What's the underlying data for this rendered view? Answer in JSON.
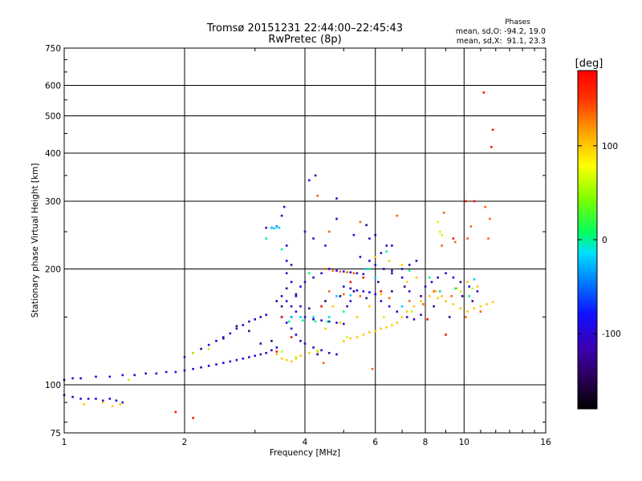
{
  "chart_data": {
    "type": "scatter",
    "title": "Tromsø 20151231 22:44:00–22:45:43",
    "subtitle": "RwPretec (8p)",
    "xlabel": "Frequency [MHz]",
    "ylabel": "Stationary phase Virtual Height [km]",
    "x_scale": "log",
    "y_scale": "log",
    "xlim": [
      1,
      16
    ],
    "ylim": [
      75,
      750
    ],
    "x_ticks": [
      1,
      2,
      4,
      6,
      8,
      10,
      16
    ],
    "y_ticks": [
      75,
      100,
      200,
      300,
      400,
      500,
      600,
      750
    ],
    "grid": true,
    "phase_stats": {
      "heading": "Phases",
      "line_o": "mean, sd,O: -94.2, 19.0",
      "line_x": "mean, sd,X:  91.1, 23.3"
    },
    "colorbar": {
      "label": "[deg]",
      "range": [
        -180,
        180
      ],
      "ticks": [
        100,
        0,
        -100
      ],
      "colors": [
        "#000000",
        "#2a0055",
        "#3a00b0",
        "#1010ff",
        "#0080ff",
        "#00e0ff",
        "#00ff60",
        "#7dff00",
        "#ffff00",
        "#ffa000",
        "#ff3000",
        "#ff0000"
      ]
    },
    "series": [
      {
        "color_deg": -100,
        "points": [
          [
            1.0,
            103
          ],
          [
            1.05,
            104
          ],
          [
            1.1,
            104
          ],
          [
            1.2,
            105
          ],
          [
            1.3,
            105
          ],
          [
            1.4,
            106
          ],
          [
            1.5,
            106
          ],
          [
            1.6,
            107
          ],
          [
            1.7,
            107
          ],
          [
            1.8,
            108
          ],
          [
            1.9,
            108
          ],
          [
            2.0,
            109
          ],
          [
            2.1,
            110
          ],
          [
            2.2,
            111
          ],
          [
            2.3,
            112
          ],
          [
            2.4,
            113
          ],
          [
            2.5,
            114
          ],
          [
            2.6,
            115
          ],
          [
            2.7,
            116
          ],
          [
            2.8,
            117
          ],
          [
            2.9,
            118
          ],
          [
            3.0,
            119
          ],
          [
            3.1,
            120
          ],
          [
            3.2,
            121
          ],
          [
            3.3,
            123
          ],
          [
            3.4,
            125
          ],
          [
            1.0,
            94
          ],
          [
            1.05,
            93
          ],
          [
            1.1,
            92
          ],
          [
            1.15,
            92
          ],
          [
            1.2,
            92
          ],
          [
            1.25,
            91
          ],
          [
            1.3,
            92
          ],
          [
            1.35,
            91
          ],
          [
            1.4,
            90
          ],
          [
            2.0,
            118
          ],
          [
            2.1,
            121
          ],
          [
            2.2,
            124
          ],
          [
            2.3,
            127
          ],
          [
            2.4,
            130
          ],
          [
            2.5,
            133
          ],
          [
            2.6,
            136
          ],
          [
            2.7,
            140
          ],
          [
            2.8,
            143
          ],
          [
            2.9,
            146
          ],
          [
            3.0,
            148
          ],
          [
            3.1,
            150
          ],
          [
            3.2,
            152
          ],
          [
            3.2,
            256
          ],
          [
            3.3,
            256
          ],
          [
            3.4,
            258
          ],
          [
            3.5,
            275
          ],
          [
            3.55,
            290
          ],
          [
            3.6,
            230
          ],
          [
            3.6,
            210
          ],
          [
            3.6,
            195
          ],
          [
            3.7,
            205
          ],
          [
            3.7,
            185
          ],
          [
            3.5,
            170
          ],
          [
            3.6,
            165
          ],
          [
            3.7,
            160
          ],
          [
            3.8,
            170
          ],
          [
            3.9,
            180
          ],
          [
            3.5,
            150
          ],
          [
            3.6,
            145
          ],
          [
            3.7,
            140
          ],
          [
            3.8,
            135
          ],
          [
            3.9,
            130
          ],
          [
            4.0,
            128
          ],
          [
            4.2,
            125
          ],
          [
            4.4,
            123
          ],
          [
            4.6,
            121
          ],
          [
            4.8,
            120
          ],
          [
            4.0,
            150
          ],
          [
            4.2,
            148
          ],
          [
            4.4,
            147
          ],
          [
            4.6,
            146
          ],
          [
            4.8,
            145
          ],
          [
            5.0,
            144
          ],
          [
            3.9,
            160
          ],
          [
            3.8,
            155
          ],
          [
            3.7,
            150
          ],
          [
            4.0,
            185
          ],
          [
            4.2,
            190
          ],
          [
            4.4,
            195
          ],
          [
            4.6,
            200
          ],
          [
            4.8,
            198
          ],
          [
            5.0,
            197
          ],
          [
            5.2,
            196
          ],
          [
            5.4,
            195
          ],
          [
            5.6,
            194
          ],
          [
            5.0,
            180
          ],
          [
            5.2,
            178
          ],
          [
            5.4,
            176
          ],
          [
            5.6,
            175
          ],
          [
            5.8,
            174
          ],
          [
            6.0,
            172
          ],
          [
            5.5,
            215
          ],
          [
            5.8,
            210
          ],
          [
            6.0,
            205
          ],
          [
            6.3,
            200
          ],
          [
            6.6,
            198
          ],
          [
            7.0,
            200
          ],
          [
            7.3,
            205
          ],
          [
            7.6,
            210
          ],
          [
            4.0,
            250
          ],
          [
            4.2,
            240
          ],
          [
            4.5,
            230
          ],
          [
            4.8,
            270
          ],
          [
            5.3,
            245
          ],
          [
            5.8,
            240
          ],
          [
            6.2,
            220
          ],
          [
            6.6,
            230
          ],
          [
            6.2,
            165
          ],
          [
            6.5,
            160
          ],
          [
            6.8,
            155
          ],
          [
            7.2,
            150
          ],
          [
            7.5,
            148
          ],
          [
            7.8,
            152
          ],
          [
            8.0,
            180
          ],
          [
            8.3,
            185
          ],
          [
            8.6,
            190
          ],
          [
            9.0,
            195
          ],
          [
            9.4,
            190
          ],
          [
            9.8,
            185
          ],
          [
            10.3,
            180
          ],
          [
            10.8,
            175
          ],
          [
            4.1,
            340
          ],
          [
            4.25,
            350
          ],
          [
            4.8,
            305
          ],
          [
            6.4,
            230
          ],
          [
            7.0,
            190
          ],
          [
            7.3,
            175
          ],
          [
            5.1,
            160
          ],
          [
            5.2,
            165
          ]
        ]
      },
      {
        "color_deg": -130,
        "points": [
          [
            2.5,
            132
          ],
          [
            2.7,
            142
          ],
          [
            2.9,
            138
          ],
          [
            3.1,
            128
          ],
          [
            3.3,
            130
          ],
          [
            3.4,
            165
          ],
          [
            3.5,
            160
          ],
          [
            3.6,
            178
          ],
          [
            3.8,
            172
          ],
          [
            4.1,
            158
          ],
          [
            4.5,
            165
          ],
          [
            4.9,
            170
          ],
          [
            5.3,
            175
          ],
          [
            5.7,
            168
          ],
          [
            6.1,
            185
          ],
          [
            6.6,
            195
          ],
          [
            7.1,
            180
          ],
          [
            7.8,
            170
          ],
          [
            8.4,
            160
          ],
          [
            9.2,
            150
          ],
          [
            9.9,
            170
          ],
          [
            10.5,
            165
          ],
          [
            5.7,
            260
          ],
          [
            6.0,
            245
          ],
          [
            6.6,
            175
          ],
          [
            4.3,
            120
          ]
        ]
      },
      {
        "color_deg": -20,
        "points": [
          [
            3.3,
            256
          ],
          [
            3.35,
            255
          ],
          [
            3.4,
            257
          ],
          [
            3.45,
            256
          ],
          [
            3.7,
            150
          ],
          [
            3.9,
            150
          ],
          [
            4.2,
            150
          ],
          [
            4.6,
            150
          ],
          [
            4.8,
            170
          ],
          [
            5.2,
            171
          ],
          [
            5.7,
            200
          ],
          [
            6.0,
            190
          ],
          [
            7.0,
            160
          ],
          [
            8.7,
            175
          ],
          [
            10.6,
            188
          ]
        ]
      },
      {
        "color_deg": 100,
        "points": [
          [
            1.12,
            89
          ],
          [
            1.25,
            90
          ],
          [
            1.32,
            88
          ],
          [
            1.38,
            89
          ],
          [
            3.4,
            120
          ],
          [
            3.5,
            117
          ],
          [
            3.6,
            116
          ],
          [
            3.7,
            115
          ],
          [
            3.8,
            117
          ],
          [
            3.9,
            119
          ],
          [
            4.1,
            121
          ],
          [
            4.3,
            122
          ],
          [
            5.0,
            130
          ],
          [
            5.2,
            132
          ],
          [
            5.4,
            133
          ],
          [
            5.6,
            135
          ],
          [
            5.8,
            137
          ],
          [
            6.0,
            138
          ],
          [
            6.2,
            140
          ],
          [
            6.4,
            141
          ],
          [
            6.6,
            143
          ],
          [
            6.8,
            145
          ],
          [
            7.0,
            150
          ],
          [
            7.2,
            155
          ],
          [
            7.5,
            160
          ],
          [
            7.8,
            165
          ],
          [
            8.2,
            170
          ],
          [
            8.6,
            168
          ],
          [
            9.0,
            165
          ],
          [
            9.4,
            162
          ],
          [
            9.8,
            158
          ],
          [
            10.2,
            155
          ],
          [
            10.6,
            158
          ],
          [
            11.0,
            160
          ],
          [
            11.4,
            162
          ],
          [
            11.8,
            164
          ],
          [
            6.0,
            215
          ],
          [
            6.5,
            210
          ],
          [
            7.0,
            205
          ],
          [
            8.5,
            175
          ],
          [
            8.8,
            170
          ],
          [
            9.6,
            178
          ],
          [
            10.2,
            185
          ],
          [
            10.8,
            180
          ],
          [
            5.8,
            160
          ],
          [
            6.2,
            172
          ],
          [
            4.7,
            160
          ],
          [
            4.5,
            140
          ],
          [
            4.9,
            145
          ],
          [
            5.4,
            150
          ],
          [
            7.2,
            185
          ],
          [
            7.6,
            190
          ]
        ]
      },
      {
        "color_deg": 135,
        "points": [
          [
            4.5,
            200
          ],
          [
            4.7,
            198
          ],
          [
            4.9,
            197
          ],
          [
            5.1,
            196
          ],
          [
            5.3,
            195
          ],
          [
            4.6,
            175
          ],
          [
            5.0,
            172
          ],
          [
            5.5,
            170
          ],
          [
            6.5,
            168
          ],
          [
            7.3,
            165
          ],
          [
            7.9,
            162
          ],
          [
            8.4,
            175
          ],
          [
            9.3,
            170
          ],
          [
            10.1,
            150
          ],
          [
            11.0,
            155
          ],
          [
            4.6,
            250
          ],
          [
            5.5,
            265
          ],
          [
            6.8,
            275
          ],
          [
            8.8,
            230
          ],
          [
            9.5,
            235
          ],
          [
            10.2,
            240
          ],
          [
            10.4,
            258
          ],
          [
            11.3,
            290
          ],
          [
            4.3,
            310
          ],
          [
            4.45,
            114
          ],
          [
            5.9,
            110
          ],
          [
            8.9,
            280
          ],
          [
            11.5,
            240
          ],
          [
            11.6,
            270
          ]
        ]
      },
      {
        "color_deg": 170,
        "points": [
          [
            9.4,
            240
          ],
          [
            10.1,
            300
          ],
          [
            10.6,
            300
          ],
          [
            11.2,
            575
          ],
          [
            11.8,
            460
          ],
          [
            11.7,
            415
          ],
          [
            1.9,
            85
          ],
          [
            2.1,
            82
          ],
          [
            3.4,
            122
          ],
          [
            3.5,
            150
          ],
          [
            3.7,
            133
          ],
          [
            4.4,
            160
          ],
          [
            5.2,
            185
          ],
          [
            5.6,
            190
          ],
          [
            6.2,
            175
          ],
          [
            8.1,
            148
          ],
          [
            9.0,
            135
          ]
        ]
      },
      {
        "color_deg": 60,
        "points": [
          [
            3.5,
            122
          ],
          [
            3.8,
            118
          ],
          [
            4.3,
            123
          ],
          [
            5.1,
            133
          ],
          [
            6.3,
            150
          ],
          [
            7.4,
            155
          ],
          [
            8.6,
            265
          ],
          [
            8.7,
            250
          ],
          [
            8.8,
            245
          ],
          [
            9.8,
            175
          ],
          [
            10.5,
            178
          ],
          [
            2.1,
            121
          ],
          [
            2.3,
            124
          ],
          [
            1.45,
            103
          ]
        ]
      },
      {
        "color_deg": 0,
        "points": [
          [
            3.2,
            240
          ],
          [
            3.5,
            225
          ],
          [
            4.1,
            195
          ],
          [
            5.8,
            200
          ],
          [
            6.4,
            222
          ],
          [
            7.3,
            198
          ],
          [
            8.2,
            190
          ],
          [
            9.5,
            178
          ],
          [
            10.3,
            170
          ],
          [
            3.65,
            146
          ],
          [
            3.95,
            147
          ],
          [
            4.25,
            146
          ],
          [
            4.55,
            146
          ],
          [
            5.0,
            155
          ]
        ]
      }
    ]
  }
}
